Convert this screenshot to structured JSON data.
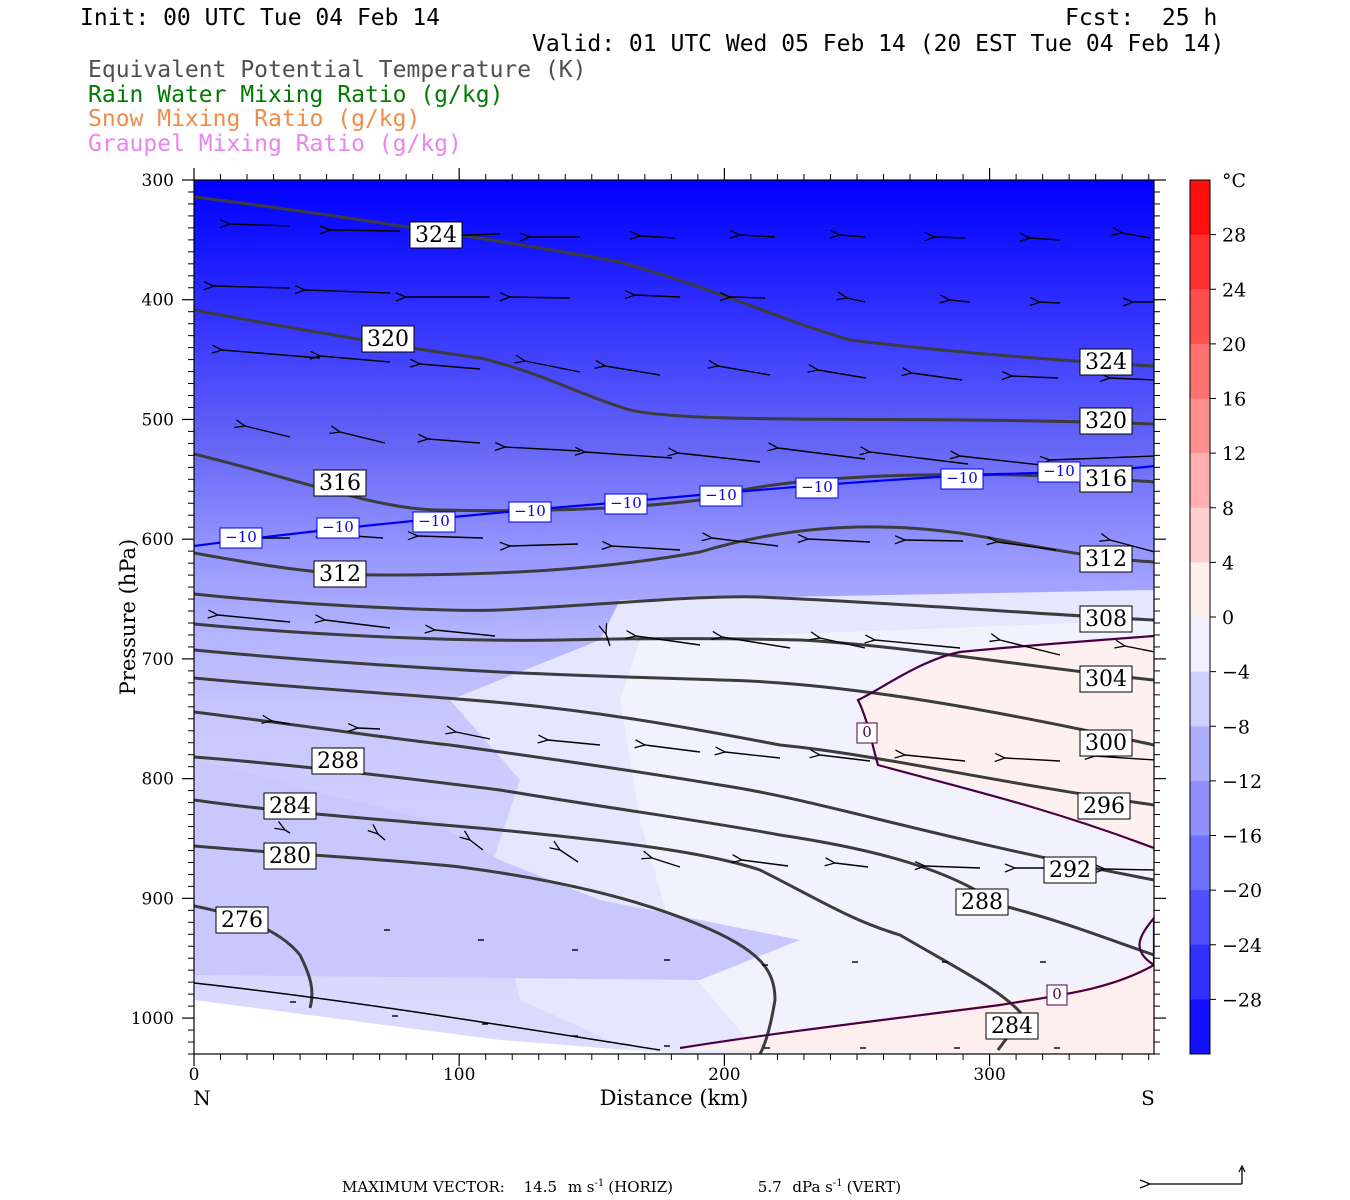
{
  "header": {
    "init": "Init: 00 UTC Tue 04 Feb 14",
    "fcst": "Fcst:  25 h",
    "valid": "Valid: 01 UTC Wed 05 Feb 14 (20 EST Tue 04 Feb 14)"
  },
  "legend": [
    {
      "label": "Equivalent Potential Temperature (K)",
      "color": "#505050"
    },
    {
      "label": "Rain Water Mixing Ratio (g/kg)",
      "color": "#007a00"
    },
    {
      "label": "Snow Mixing Ratio (g/kg)",
      "color": "#f08c4a"
    },
    {
      "label": "Graupel Mixing Ratio (g/kg)",
      "color": "#ee82ee"
    }
  ],
  "chart_data": {
    "type": "cross-section",
    "xlabel": "Distance (km)",
    "ylabel": "Pressure (hPa)",
    "x_ticks": [
      0,
      100,
      200,
      300
    ],
    "y_ticks": [
      300,
      400,
      500,
      600,
      700,
      800,
      900,
      1000
    ],
    "xlim": [
      0,
      362
    ],
    "ylim": [
      1030,
      300
    ],
    "left_end_label": "N",
    "right_end_label": "S",
    "colorbar": {
      "unit": "°C",
      "tick_labels": [
        "28",
        "24",
        "20",
        "16",
        "12",
        "8",
        "4",
        "0",
        "−4",
        "−8",
        "−12",
        "−16",
        "−20",
        "−24",
        "−28"
      ],
      "tick_values": [
        28,
        24,
        20,
        16,
        12,
        8,
        4,
        0,
        -4,
        -8,
        -12,
        -16,
        -20,
        -24,
        -28
      ],
      "range": [
        -32,
        32
      ]
    },
    "theta_e_contour_labels": [
      "324",
      "320",
      "316",
      "312",
      "308",
      "304",
      "300",
      "296",
      "292",
      "288",
      "284",
      "280",
      "276"
    ],
    "temperature_contour_labels": [
      "−10",
      "0"
    ],
    "footer": {
      "label": "MAXIMUM VECTOR:",
      "horiz_value": "14.5",
      "horiz_unit_a": "m s",
      "horiz_exp": "-1",
      "horiz_tag": "(HORIZ)",
      "vert_value": "5.7",
      "vert_unit_a": "dPa s",
      "vert_exp": "-1",
      "vert_tag": "(VERT)"
    }
  }
}
